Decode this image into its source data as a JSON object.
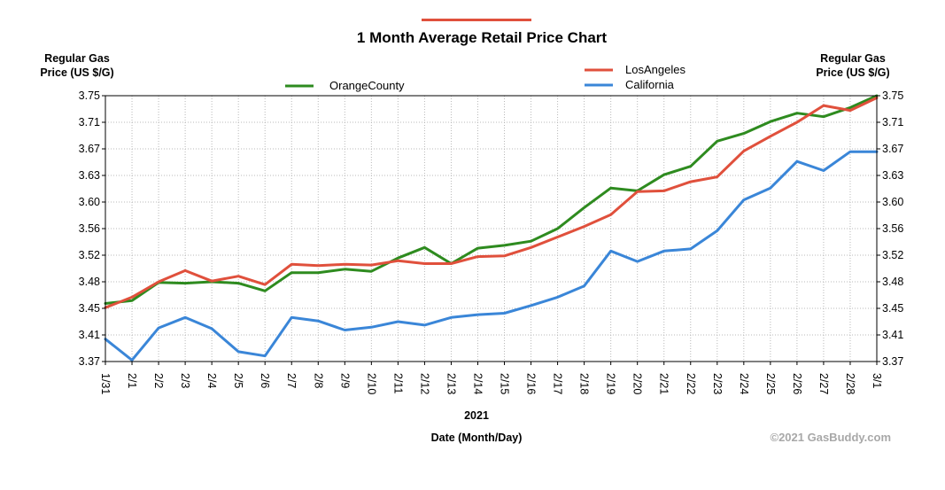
{
  "chart_data": {
    "type": "line",
    "title": "1 Month Average Retail Price Chart",
    "ylabel_left": [
      "Regular Gas",
      "Price (US $/G)"
    ],
    "ylabel_right": [
      "Regular Gas",
      "Price (US $/G)"
    ],
    "xlabel_year": "2021",
    "xlabel": "Date (Month/Day)",
    "y_ticks": [
      "3.75",
      "3.71",
      "3.67",
      "3.63",
      "3.60",
      "3.56",
      "3.52",
      "3.48",
      "3.45",
      "3.41",
      "3.37"
    ],
    "ylim": [
      3.37,
      3.75
    ],
    "categories": [
      "1/31",
      "2/1",
      "2/2",
      "2/3",
      "2/4",
      "2/5",
      "2/6",
      "2/7",
      "2/8",
      "2/9",
      "2/10",
      "2/11",
      "2/12",
      "2/13",
      "2/14",
      "2/15",
      "2/16",
      "2/17",
      "2/18",
      "2/19",
      "2/20",
      "2/21",
      "2/22",
      "2/23",
      "2/24",
      "2/25",
      "2/26",
      "2/27",
      "2/28",
      "3/1"
    ],
    "grid": true,
    "series": [
      {
        "name": "OrangeCounty",
        "color": "#2e8b1f",
        "values": [
          3.453,
          3.457,
          3.483,
          3.482,
          3.484,
          3.482,
          3.471,
          3.497,
          3.497,
          3.502,
          3.499,
          3.518,
          3.533,
          3.51,
          3.532,
          3.536,
          3.542,
          3.56,
          3.59,
          3.618,
          3.614,
          3.637,
          3.649,
          3.685,
          3.696,
          3.713,
          3.725,
          3.72,
          3.733,
          3.75
        ]
      },
      {
        "name": "LosAngeles",
        "color": "#e0503c",
        "values": [
          3.447,
          3.462,
          3.484,
          3.5,
          3.485,
          3.492,
          3.48,
          3.509,
          3.507,
          3.509,
          3.508,
          3.514,
          3.51,
          3.51,
          3.52,
          3.521,
          3.533,
          3.548,
          3.563,
          3.58,
          3.613,
          3.614,
          3.627,
          3.634,
          3.671,
          3.692,
          3.712,
          3.736,
          3.729,
          3.747
        ]
      },
      {
        "name": "California",
        "color": "#3a86d8",
        "values": [
          3.402,
          3.372,
          3.418,
          3.433,
          3.417,
          3.384,
          3.378,
          3.433,
          3.428,
          3.415,
          3.419,
          3.427,
          3.422,
          3.433,
          3.437,
          3.439,
          3.45,
          3.462,
          3.478,
          3.528,
          3.513,
          3.528,
          3.531,
          3.557,
          3.601,
          3.618,
          3.656,
          3.643,
          3.67,
          3.67
        ]
      }
    ],
    "legend": {
      "left_column": [
        "OrangeCounty"
      ],
      "right_column": [
        "LosAngeles",
        "California"
      ]
    },
    "copyright": "©2021 GasBuddy.com",
    "accent_bar_color": "#e0503c"
  }
}
